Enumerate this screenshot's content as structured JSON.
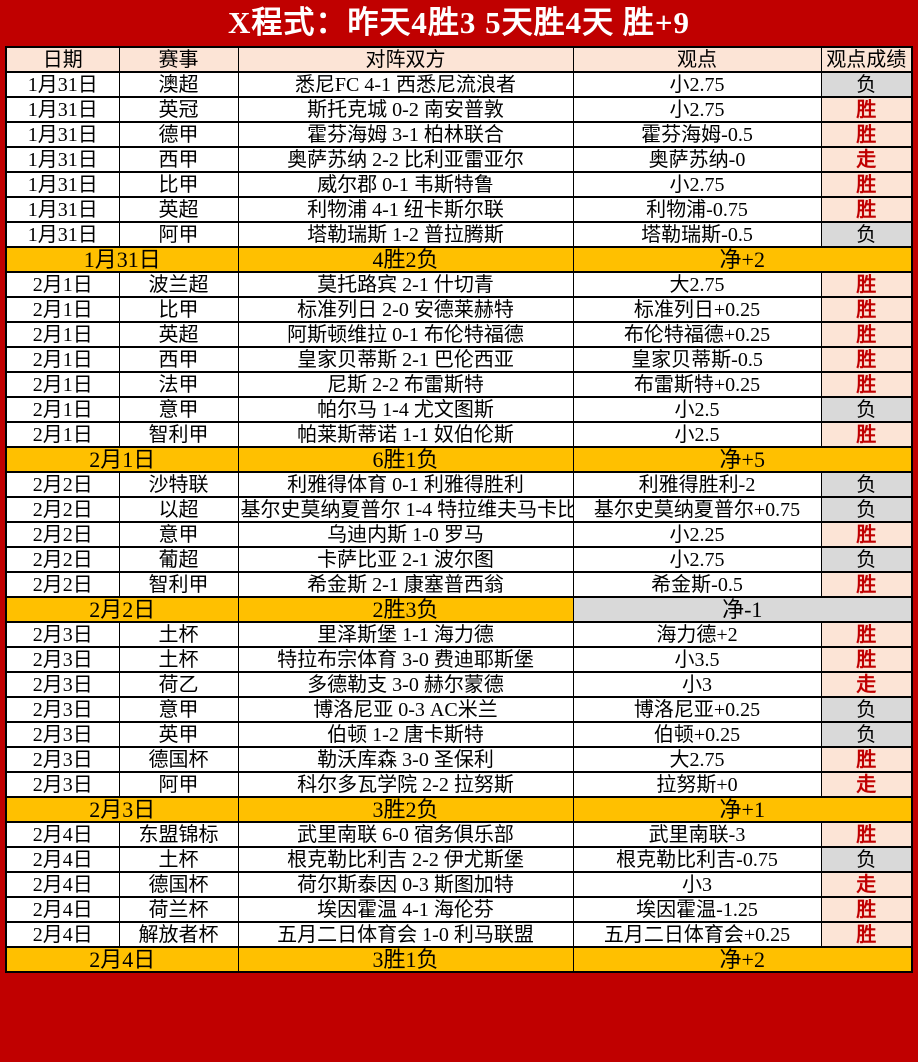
{
  "title": "X程式：昨天4胜3 5天胜4天 胜+9",
  "columns": [
    "日期",
    "赛事",
    "对阵双方",
    "观点",
    "观点成绩"
  ],
  "colors": {
    "accent_red": "#C00000",
    "header_bg": "#FCE4D6",
    "win_bg": "#FCE4D6",
    "win_text": "#C00000",
    "lose_bg": "#D9D9D9",
    "summary_bg": "#FFC000",
    "grid": "#000000"
  },
  "sections": [
    {
      "rows": [
        {
          "date": "1月31日",
          "league": "澳超",
          "match": "悉尼FC 4-1 西悉尼流浪者",
          "view": "小2.75",
          "result": "负",
          "result_status": "lose"
        },
        {
          "date": "1月31日",
          "league": "英冠",
          "match": "斯托克城 0-2 南安普敦",
          "view": "小2.75",
          "result": "胜",
          "result_status": "win"
        },
        {
          "date": "1月31日",
          "league": "德甲",
          "match": "霍芬海姆 3-1 柏林联合",
          "view": "霍芬海姆-0.5",
          "result": "胜",
          "result_status": "win"
        },
        {
          "date": "1月31日",
          "league": "西甲",
          "match": "奥萨苏纳 2-2 比利亚雷亚尔",
          "view": "奥萨苏纳-0",
          "result": "走",
          "result_status": "push"
        },
        {
          "date": "1月31日",
          "league": "比甲",
          "match": "威尔郡 0-1 韦斯特鲁",
          "view": "小2.75",
          "result": "胜",
          "result_status": "win"
        },
        {
          "date": "1月31日",
          "league": "英超",
          "match": "利物浦 4-1 纽卡斯尔联",
          "view": "利物浦-0.75",
          "result": "胜",
          "result_status": "win"
        },
        {
          "date": "1月31日",
          "league": "阿甲",
          "match": "塔勒瑞斯 1-2 普拉腾斯",
          "view": "塔勒瑞斯-0.5",
          "result": "负",
          "result_status": "lose"
        }
      ],
      "summary": {
        "date": "1月31日",
        "record": "4胜2负",
        "net": "净+2",
        "net_status": "positive"
      }
    },
    {
      "rows": [
        {
          "date": "2月1日",
          "league": "波兰超",
          "match": "莫托路宾 2-1 什切青",
          "view": "大2.75",
          "result": "胜",
          "result_status": "win"
        },
        {
          "date": "2月1日",
          "league": "比甲",
          "match": "标准列日 2-0 安德莱赫特",
          "view": "标准列日+0.25",
          "result": "胜",
          "result_status": "win"
        },
        {
          "date": "2月1日",
          "league": "英超",
          "match": "阿斯顿维拉 0-1 布伦特福德",
          "view": "布伦特福德+0.25",
          "result": "胜",
          "result_status": "win"
        },
        {
          "date": "2月1日",
          "league": "西甲",
          "match": "皇家贝蒂斯 2-1 巴伦西亚",
          "view": "皇家贝蒂斯-0.5",
          "result": "胜",
          "result_status": "win"
        },
        {
          "date": "2月1日",
          "league": "法甲",
          "match": "尼斯 2-2 布雷斯特",
          "view": "布雷斯特+0.25",
          "result": "胜",
          "result_status": "win"
        },
        {
          "date": "2月1日",
          "league": "意甲",
          "match": "帕尔马 1-4 尤文图斯",
          "view": "小2.5",
          "result": "负",
          "result_status": "lose"
        },
        {
          "date": "2月1日",
          "league": "智利甲",
          "match": "帕莱斯蒂诺 1-1 奴伯伦斯",
          "view": "小2.5",
          "result": "胜",
          "result_status": "win"
        }
      ],
      "summary": {
        "date": "2月1日",
        "record": "6胜1负",
        "net": "净+5",
        "net_status": "positive"
      }
    },
    {
      "rows": [
        {
          "date": "2月2日",
          "league": "沙特联",
          "match": "利雅得体育 0-1 利雅得胜利",
          "view": "利雅得胜利-2",
          "result": "负",
          "result_status": "lose"
        },
        {
          "date": "2月2日",
          "league": "以超",
          "match": "基尔史莫纳夏普尔 1-4 特拉维夫马卡比",
          "view": "基尔史莫纳夏普尔+0.75",
          "result": "负",
          "result_status": "lose"
        },
        {
          "date": "2月2日",
          "league": "意甲",
          "match": "乌迪内斯 1-0 罗马",
          "view": "小2.25",
          "result": "胜",
          "result_status": "win"
        },
        {
          "date": "2月2日",
          "league": "葡超",
          "match": "卡萨比亚 2-1 波尔图",
          "view": "小2.75",
          "result": "负",
          "result_status": "lose"
        },
        {
          "date": "2月2日",
          "league": "智利甲",
          "match": "希金斯 2-1 康塞普西翁",
          "view": "希金斯-0.5",
          "result": "胜",
          "result_status": "win"
        }
      ],
      "summary": {
        "date": "2月2日",
        "record": "2胜3负",
        "net": "净-1",
        "net_status": "negative"
      }
    },
    {
      "rows": [
        {
          "date": "2月3日",
          "league": "土杯",
          "match": "里泽斯堡 1-1 海力德",
          "view": "海力德+2",
          "result": "胜",
          "result_status": "win"
        },
        {
          "date": "2月3日",
          "league": "土杯",
          "match": "特拉布宗体育 3-0 费迪耶斯堡",
          "view": "小3.5",
          "result": "胜",
          "result_status": "win"
        },
        {
          "date": "2月3日",
          "league": "荷乙",
          "match": "多德勒支 3-0 赫尔蒙德",
          "view": "小3",
          "result": "走",
          "result_status": "push"
        },
        {
          "date": "2月3日",
          "league": "意甲",
          "match": "博洛尼亚 0-3 AC米兰",
          "view": "博洛尼亚+0.25",
          "result": "负",
          "result_status": "lose"
        },
        {
          "date": "2月3日",
          "league": "英甲",
          "match": "伯顿 1-2 唐卡斯特",
          "view": "伯顿+0.25",
          "result": "负",
          "result_status": "lose"
        },
        {
          "date": "2月3日",
          "league": "德国杯",
          "match": "勒沃库森 3-0 圣保利",
          "view": "大2.75",
          "result": "胜",
          "result_status": "win"
        },
        {
          "date": "2月3日",
          "league": "阿甲",
          "match": "科尔多瓦学院 2-2 拉努斯",
          "view": "拉努斯+0",
          "result": "走",
          "result_status": "push"
        }
      ],
      "summary": {
        "date": "2月3日",
        "record": "3胜2负",
        "net": "净+1",
        "net_status": "positive"
      }
    },
    {
      "rows": [
        {
          "date": "2月4日",
          "league": "东盟锦标",
          "match": "武里南联 6-0 宿务俱乐部",
          "view": "武里南联-3",
          "result": "胜",
          "result_status": "win"
        },
        {
          "date": "2月4日",
          "league": "土杯",
          "match": "根克勒比利吉 2-2 伊尤斯堡",
          "view": "根克勒比利吉-0.75",
          "result": "负",
          "result_status": "lose"
        },
        {
          "date": "2月4日",
          "league": "德国杯",
          "match": "荷尔斯泰因 0-3 斯图加特",
          "view": "小3",
          "result": "走",
          "result_status": "push"
        },
        {
          "date": "2月4日",
          "league": "荷兰杯",
          "match": "埃因霍温 4-1 海伦芬",
          "view": "埃因霍温-1.25",
          "result": "胜",
          "result_status": "win"
        },
        {
          "date": "2月4日",
          "league": "解放者杯",
          "match": "五月二日体育会 1-0 利马联盟",
          "view": "五月二日体育会+0.25",
          "result": "胜",
          "result_status": "win"
        }
      ],
      "summary": {
        "date": "2月4日",
        "record": "3胜1负",
        "net": "净+2",
        "net_status": "positive"
      }
    }
  ]
}
